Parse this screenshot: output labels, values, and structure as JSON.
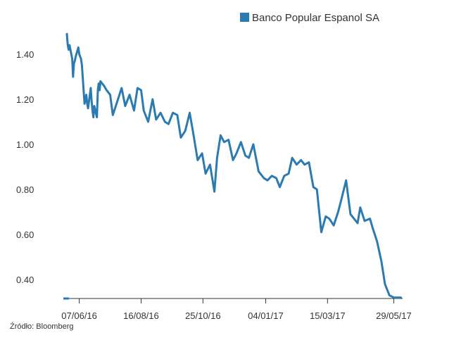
{
  "chart_data": {
    "type": "line",
    "title": "",
    "xlabel": "",
    "ylabel": "",
    "ylim": [
      0.32,
      1.5
    ],
    "yticks": [
      "1.40",
      "1.20",
      "1.00",
      "0.80",
      "0.60",
      "0.40"
    ],
    "xticks": [
      "07/06/16",
      "16/08/16",
      "25/10/16",
      "04/01/17",
      "15/03/17",
      "29/05/17"
    ],
    "grid": false,
    "legend_position": "top-right",
    "line_color": "#2b7bb0",
    "series": [
      {
        "name": "Banco Popular Espanol SA",
        "x": [
          "2016-05-24",
          "2016-05-25",
          "2016-05-26",
          "2016-05-27",
          "2016-05-30",
          "2016-05-31",
          "2016-06-01",
          "2016-06-02",
          "2016-06-03",
          "2016-06-06",
          "2016-06-07",
          "2016-06-08",
          "2016-06-09",
          "2016-06-10",
          "2016-06-13",
          "2016-06-14",
          "2016-06-15",
          "2016-06-16",
          "2016-06-17",
          "2016-06-20",
          "2016-06-21",
          "2016-06-22",
          "2016-06-23",
          "2016-06-24",
          "2016-06-27",
          "2016-06-28",
          "2016-06-29",
          "2016-06-30",
          "2016-07-01",
          "2016-07-05",
          "2016-07-08",
          "2016-07-12",
          "2016-07-15",
          "2016-07-20",
          "2016-07-25",
          "2016-07-29",
          "2016-08-03",
          "2016-08-08",
          "2016-08-12",
          "2016-08-16",
          "2016-08-19",
          "2016-08-24",
          "2016-08-29",
          "2016-09-02",
          "2016-09-07",
          "2016-09-12",
          "2016-09-16",
          "2016-09-21",
          "2016-09-26",
          "2016-09-30",
          "2016-10-05",
          "2016-10-10",
          "2016-10-14",
          "2016-10-19",
          "2016-10-24",
          "2016-10-28",
          "2016-11-02",
          "2016-11-07",
          "2016-11-10",
          "2016-11-14",
          "2016-11-18",
          "2016-11-23",
          "2016-11-28",
          "2016-12-02",
          "2016-12-07",
          "2016-12-12",
          "2016-12-16",
          "2016-12-21",
          "2016-12-27",
          "2017-01-02",
          "2017-01-06",
          "2017-01-11",
          "2017-01-16",
          "2017-01-20",
          "2017-01-25",
          "2017-01-30",
          "2017-02-03",
          "2017-02-08",
          "2017-02-13",
          "2017-02-17",
          "2017-02-22",
          "2017-02-27",
          "2017-03-03",
          "2017-03-08",
          "2017-03-13",
          "2017-03-17",
          "2017-03-22",
          "2017-03-27",
          "2017-03-31",
          "2017-04-05",
          "2017-04-10",
          "2017-04-18",
          "2017-04-21",
          "2017-04-26",
          "2017-05-02",
          "2017-05-05",
          "2017-05-10",
          "2017-05-15",
          "2017-05-19",
          "2017-05-24",
          "2017-05-29",
          "2017-06-01",
          "2017-06-05",
          "2017-06-06"
        ],
        "values": [
          1.49,
          1.44,
          1.42,
          1.44,
          1.38,
          1.3,
          1.36,
          1.37,
          1.39,
          1.43,
          1.4,
          1.39,
          1.38,
          1.35,
          1.18,
          1.2,
          1.22,
          1.18,
          1.16,
          1.25,
          1.19,
          1.15,
          1.12,
          1.17,
          1.12,
          1.24,
          1.27,
          1.24,
          1.28,
          1.26,
          1.24,
          1.22,
          1.13,
          1.19,
          1.25,
          1.17,
          1.22,
          1.15,
          1.25,
          1.24,
          1.15,
          1.1,
          1.2,
          1.11,
          1.14,
          1.1,
          1.09,
          1.14,
          1.13,
          1.03,
          1.06,
          1.14,
          1.05,
          0.93,
          0.96,
          0.87,
          0.91,
          0.79,
          0.94,
          1.04,
          1.01,
          1.02,
          0.93,
          0.96,
          1.01,
          0.95,
          0.94,
          1.0,
          0.88,
          0.85,
          0.84,
          0.86,
          0.85,
          0.81,
          0.86,
          0.87,
          0.94,
          0.91,
          0.93,
          0.91,
          0.92,
          0.81,
          0.8,
          0.61,
          0.68,
          0.67,
          0.64,
          0.7,
          0.76,
          0.84,
          0.69,
          0.65,
          0.72,
          0.66,
          0.67,
          0.63,
          0.57,
          0.48,
          0.38,
          0.33,
          0.32,
          0.32,
          0.32,
          0.32
        ]
      }
    ],
    "xlim": [
      "2016-05-20",
      "2017-06-08"
    ]
  },
  "source_label": "Źródło: Bloomberg"
}
